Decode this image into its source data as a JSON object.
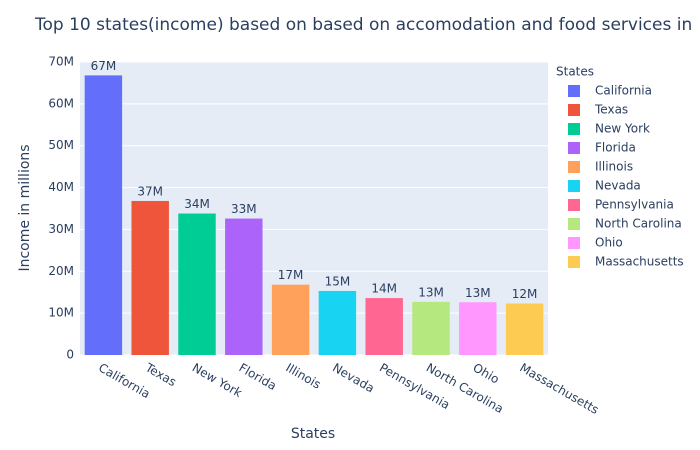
{
  "chart_data": {
    "type": "bar",
    "title": "Top 10 states(income) based on based on accomodation and food services in",
    "x_label": "States",
    "y_label": "Income in millions",
    "legend_title": "States",
    "categories": [
      "California",
      "Texas",
      "New York",
      "Florida",
      "Illinois",
      "Nevada",
      "Pennsylvania",
      "North Carolina",
      "Ohio",
      "Massachusetts"
    ],
    "values": [
      66800000,
      36800000,
      33800000,
      32600000,
      16800000,
      15300000,
      13600000,
      12700000,
      12600000,
      12300000
    ],
    "value_labels": [
      "67M",
      "37M",
      "34M",
      "33M",
      "17M",
      "15M",
      "14M",
      "13M",
      "13M",
      "12M"
    ],
    "colors": [
      "#636efa",
      "#ef553b",
      "#00cc96",
      "#ab63fa",
      "#ffa15a",
      "#19d3f3",
      "#ff6692",
      "#b6e880",
      "#ff97ff",
      "#fecb52"
    ],
    "ylim": [
      0,
      70000000
    ],
    "yticks": [
      0,
      {
        "value": 10000000,
        "label": "10M"
      },
      {
        "value": 20000000,
        "label": "20M"
      },
      {
        "value": 30000000,
        "label": "30M"
      },
      {
        "value": 40000000,
        "label": "40M"
      },
      {
        "value": 50000000,
        "label": "50M"
      },
      {
        "value": 60000000,
        "label": "60M"
      },
      {
        "value": 70000000,
        "label": "70M"
      }
    ],
    "grid": true,
    "legend_position": "right"
  }
}
